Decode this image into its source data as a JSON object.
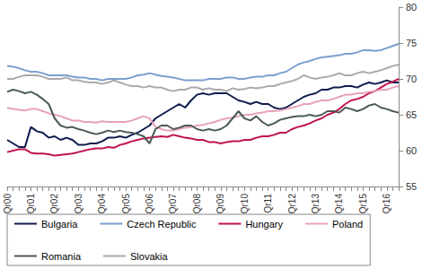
{
  "chart_data": {
    "type": "line",
    "categories": [
      "Qr00",
      null,
      null,
      null,
      "Qr01",
      null,
      null,
      null,
      "Qr02",
      null,
      null,
      null,
      "Qr03",
      null,
      null,
      null,
      "Qr04",
      null,
      null,
      null,
      "Qr05",
      null,
      null,
      null,
      "Qr06",
      null,
      null,
      null,
      "Qr07",
      null,
      null,
      null,
      "Qr08",
      null,
      null,
      null,
      "Qr09",
      null,
      null,
      null,
      "Qr10",
      null,
      null,
      null,
      "Qr11",
      null,
      null,
      null,
      "Qr12",
      null,
      null,
      null,
      "Qr13",
      null,
      null,
      null,
      "Qr14",
      null,
      null,
      null,
      "Qr15",
      null,
      null,
      null,
      "Qr16",
      null,
      null
    ],
    "ylim": [
      55,
      80
    ],
    "yticks": [
      55,
      60,
      65,
      70,
      75,
      80
    ],
    "grid": false,
    "legend": "bottom",
    "series": [
      {
        "name": "Bulgaria",
        "color": "#0f1b4d",
        "values": [
          61.5,
          61,
          60.5,
          60.5,
          63.3,
          62.7,
          62.5,
          61.8,
          62,
          61.5,
          61.8,
          61.5,
          60.8,
          60.8,
          61,
          61,
          61.3,
          61.8,
          61.8,
          62,
          61.8,
          62.2,
          62.5,
          63,
          63.5,
          64.5,
          65,
          65.5,
          66,
          66.5,
          66,
          67,
          67.8,
          68,
          67.8,
          68,
          68,
          68,
          67.5,
          67,
          66.8,
          66.5,
          66.8,
          66.5,
          66.5,
          66,
          65.8,
          66,
          66.5,
          67,
          67.5,
          67.8,
          68,
          68.5,
          68.5,
          68.8,
          68.8,
          69,
          69,
          68.8,
          69.2,
          69.5,
          69.3,
          69.5,
          69.8,
          69.5,
          69.5
        ]
      },
      {
        "name": "Czech Republic",
        "color": "#7b9fcf",
        "values": [
          71.8,
          71.7,
          71.5,
          71.2,
          71,
          71,
          70.8,
          70.5,
          70.5,
          70.5,
          70.5,
          70.3,
          70.2,
          70.2,
          70,
          70,
          69.8,
          70,
          70,
          70,
          70,
          70.2,
          70.5,
          70.6,
          70.8,
          70.6,
          70.4,
          70.3,
          70.2,
          70,
          69.8,
          69.8,
          69.8,
          69.8,
          70,
          70,
          70,
          70.2,
          70.2,
          70,
          70,
          70.2,
          70.3,
          70.3,
          70.5,
          70.5,
          70.8,
          71,
          71.5,
          72,
          72.3,
          72.5,
          72.8,
          73,
          73.1,
          73.2,
          73.3,
          73.5,
          73.5,
          73.7,
          74,
          74,
          73.9,
          74,
          74.3,
          74.6,
          74.9
        ]
      },
      {
        "name": "Hungary",
        "color": "#c0124f",
        "values": [
          59.8,
          60,
          60.2,
          60.2,
          59.7,
          59.6,
          59.6,
          59.5,
          59.3,
          59.4,
          59.5,
          59.6,
          59.8,
          60,
          60.2,
          60.3,
          60.3,
          60.5,
          60.4,
          60.8,
          61,
          61.3,
          61.5,
          61.7,
          61.8,
          61.9,
          62,
          61.9,
          62.2,
          62,
          61.8,
          61.7,
          61.5,
          61.5,
          61.2,
          61.2,
          61,
          61.2,
          61.3,
          61.3,
          61.5,
          61.5,
          61.8,
          62,
          62,
          62.2,
          62.5,
          62.5,
          63,
          63.3,
          63.5,
          63.8,
          64.2,
          64.5,
          65,
          65.3,
          65.8,
          66.5,
          67,
          67.2,
          67.5,
          68,
          68.3,
          68.8,
          69.3,
          69.6,
          70
        ]
      },
      {
        "name": "Poland",
        "color": "#e8a2b6",
        "values": [
          66,
          65.8,
          65.7,
          65.6,
          65.8,
          65.8,
          65.5,
          65.2,
          65,
          64.8,
          64.5,
          64.2,
          64.2,
          64,
          64,
          63.9,
          64.1,
          64,
          64,
          64,
          64,
          64.2,
          64.5,
          64.8,
          64.5,
          63.3,
          63,
          62.8,
          62.8,
          63,
          63.2,
          63.3,
          63.5,
          63.6,
          63.8,
          64,
          64.3,
          64.5,
          64.6,
          64.8,
          65,
          65,
          65.2,
          65.3,
          65.5,
          65.5,
          65.6,
          65.8,
          66,
          66.2,
          66.5,
          66.5,
          66.8,
          67,
          67,
          67.2,
          67.5,
          67.8,
          67.8,
          68,
          68,
          68.2,
          68.3,
          68.5,
          68.5,
          68.8,
          69
        ]
      },
      {
        "name": "Romania",
        "color": "#4b5a56",
        "values": [
          68.2,
          68.5,
          68.3,
          68,
          68.2,
          67.8,
          67.2,
          66.5,
          64.5,
          63.5,
          63.2,
          63.3,
          63,
          62.8,
          62.5,
          62.3,
          62.5,
          62.8,
          62.6,
          62.8,
          62.6,
          62.5,
          62.3,
          62,
          61,
          63,
          63.5,
          63.5,
          63,
          63.2,
          63.5,
          63.5,
          63,
          62.8,
          63,
          62.8,
          63,
          63.5,
          64.5,
          65.5,
          64.5,
          64.2,
          64.8,
          64,
          63.5,
          63.8,
          64.3,
          64.5,
          64.7,
          64.8,
          64.8,
          65,
          64.8,
          65,
          65.5,
          65.5,
          65.3,
          66,
          65.8,
          65.5,
          65.8,
          66.3,
          66.5,
          66,
          65.8,
          65.5,
          65.3
        ]
      },
      {
        "name": "Slovakia",
        "color": "#a9aaa9",
        "values": [
          70,
          70,
          70.3,
          70.5,
          70.5,
          70.5,
          70.3,
          70,
          70,
          70,
          70.2,
          69.8,
          69.8,
          69.6,
          69.5,
          69.5,
          69.3,
          69.5,
          69.8,
          69.5,
          69.2,
          69,
          69,
          68.8,
          69,
          68.8,
          68.8,
          68.5,
          68.3,
          68.5,
          68.5,
          68.8,
          68.8,
          68.5,
          68.7,
          68.5,
          68.5,
          68.3,
          68.7,
          68.5,
          68.6,
          68.8,
          68.7,
          68.8,
          69,
          69,
          69.3,
          69.5,
          69.7,
          70,
          70.5,
          70.2,
          70,
          70.2,
          70.3,
          70.5,
          70.8,
          70.5,
          70.5,
          70.8,
          71,
          70.8,
          71,
          71.2,
          71.5,
          71.8,
          72
        ]
      }
    ]
  }
}
